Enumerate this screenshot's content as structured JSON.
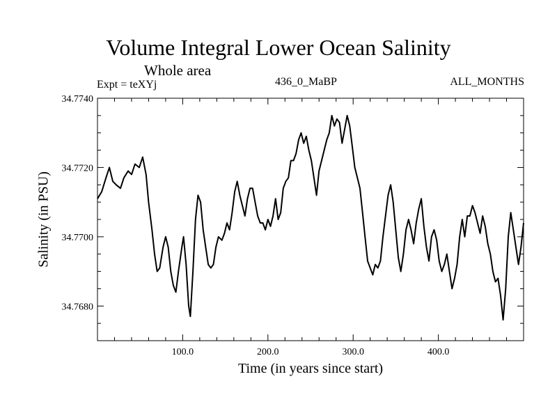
{
  "chart_data": {
    "type": "line",
    "title": "Volume Integral Lower Ocean Salinity",
    "subtitle": "Whole area",
    "left_label": "Expt = teXYj",
    "center_label": "436_0_MaBP",
    "right_label": "ALL_MONTHS",
    "xlabel": "Time (in years since start)",
    "ylabel": "Salinity (in PSU)",
    "xlim": [
      0,
      500
    ],
    "ylim": [
      34.767,
      34.774
    ],
    "xticks": [
      100,
      200,
      300,
      400
    ],
    "xtick_labels": [
      "100.0",
      "200.0",
      "300.0",
      "400.0"
    ],
    "yticks": [
      34.768,
      34.77,
      34.772,
      34.774
    ],
    "ytick_labels": [
      "34.7680",
      "34.7700",
      "34.7720",
      "34.7740"
    ],
    "grid": false,
    "series": [
      {
        "points": [
          [
            0,
            34.7711
          ],
          [
            5,
            34.7713
          ],
          [
            10,
            34.7717
          ],
          [
            14,
            34.772
          ],
          [
            18,
            34.7716
          ],
          [
            22,
            34.7715
          ],
          [
            27,
            34.7714
          ],
          [
            31,
            34.7717
          ],
          [
            36,
            34.7719
          ],
          [
            40,
            34.7718
          ],
          [
            44,
            34.7721
          ],
          [
            49,
            34.772
          ],
          [
            53,
            34.7723
          ],
          [
            57,
            34.7718
          ],
          [
            60,
            34.771
          ],
          [
            64,
            34.7702
          ],
          [
            67,
            34.7695
          ],
          [
            70,
            34.769
          ],
          [
            73,
            34.7691
          ],
          [
            77,
            34.7697
          ],
          [
            80,
            34.77
          ],
          [
            83,
            34.7697
          ],
          [
            86,
            34.769
          ],
          [
            89,
            34.7686
          ],
          [
            92,
            34.7684
          ],
          [
            95,
            34.769
          ],
          [
            99,
            34.7697
          ],
          [
            101,
            34.77
          ],
          [
            104,
            34.7692
          ],
          [
            107,
            34.768
          ],
          [
            109,
            34.7677
          ],
          [
            112,
            34.769
          ],
          [
            115,
            34.7705
          ],
          [
            118,
            34.7712
          ],
          [
            121,
            34.771
          ],
          [
            124,
            34.7702
          ],
          [
            127,
            34.7697
          ],
          [
            130,
            34.7692
          ],
          [
            133,
            34.7691
          ],
          [
            136,
            34.7692
          ],
          [
            139,
            34.7697
          ],
          [
            142,
            34.77
          ],
          [
            146,
            34.7699
          ],
          [
            149,
            34.7701
          ],
          [
            152,
            34.7704
          ],
          [
            155,
            34.7702
          ],
          [
            158,
            34.7707
          ],
          [
            161,
            34.7713
          ],
          [
            164,
            34.7716
          ],
          [
            167,
            34.7712
          ],
          [
            170,
            34.7709
          ],
          [
            173,
            34.7706
          ],
          [
            176,
            34.7711
          ],
          [
            179,
            34.7714
          ],
          [
            182,
            34.7714
          ],
          [
            185,
            34.771
          ],
          [
            188,
            34.7706
          ],
          [
            191,
            34.7704
          ],
          [
            194,
            34.7704
          ],
          [
            197,
            34.7702
          ],
          [
            200,
            34.7705
          ],
          [
            203,
            34.7703
          ],
          [
            206,
            34.7706
          ],
          [
            209,
            34.7711
          ],
          [
            212,
            34.7705
          ],
          [
            215,
            34.7707
          ],
          [
            218,
            34.7714
          ],
          [
            221,
            34.7716
          ],
          [
            224,
            34.7717
          ],
          [
            227,
            34.7722
          ],
          [
            230,
            34.7722
          ],
          [
            233,
            34.7724
          ],
          [
            236,
            34.7728
          ],
          [
            239,
            34.773
          ],
          [
            242,
            34.7727
          ],
          [
            245,
            34.7729
          ],
          [
            248,
            34.7725
          ],
          [
            251,
            34.7722
          ],
          [
            254,
            34.7717
          ],
          [
            257,
            34.7712
          ],
          [
            260,
            34.7719
          ],
          [
            263,
            34.7722
          ],
          [
            266,
            34.7725
          ],
          [
            269,
            34.7728
          ],
          [
            272,
            34.773
          ],
          [
            275,
            34.7735
          ],
          [
            278,
            34.7732
          ],
          [
            281,
            34.7734
          ],
          [
            284,
            34.7733
          ],
          [
            287,
            34.7727
          ],
          [
            290,
            34.7731
          ],
          [
            293,
            34.7735
          ],
          [
            296,
            34.7732
          ],
          [
            299,
            34.7726
          ],
          [
            302,
            34.772
          ],
          [
            305,
            34.7717
          ],
          [
            308,
            34.7714
          ],
          [
            311,
            34.7707
          ],
          [
            314,
            34.77
          ],
          [
            317,
            34.7693
          ],
          [
            320,
            34.7691
          ],
          [
            323,
            34.7689
          ],
          [
            326,
            34.7692
          ],
          [
            329,
            34.7691
          ],
          [
            332,
            34.7693
          ],
          [
            335,
            34.77
          ],
          [
            338,
            34.7706
          ],
          [
            341,
            34.7712
          ],
          [
            344,
            34.7715
          ],
          [
            347,
            34.771
          ],
          [
            350,
            34.7702
          ],
          [
            353,
            34.7694
          ],
          [
            356,
            34.769
          ],
          [
            359,
            34.7695
          ],
          [
            362,
            34.7702
          ],
          [
            365,
            34.7705
          ],
          [
            368,
            34.7702
          ],
          [
            371,
            34.7698
          ],
          [
            374,
            34.7704
          ],
          [
            377,
            34.7708
          ],
          [
            380,
            34.7711
          ],
          [
            383,
            34.7703
          ],
          [
            386,
            34.7697
          ],
          [
            389,
            34.7693
          ],
          [
            392,
            34.77
          ],
          [
            395,
            34.7702
          ],
          [
            398,
            34.7699
          ],
          [
            401,
            34.7693
          ],
          [
            404,
            34.769
          ],
          [
            407,
            34.7692
          ],
          [
            410,
            34.7695
          ],
          [
            413,
            34.769
          ],
          [
            416,
            34.7685
          ],
          [
            419,
            34.7688
          ],
          [
            422,
            34.7692
          ],
          [
            425,
            34.77
          ],
          [
            428,
            34.7705
          ],
          [
            431,
            34.77
          ],
          [
            434,
            34.7706
          ],
          [
            437,
            34.7706
          ],
          [
            440,
            34.7709
          ],
          [
            443,
            34.7707
          ],
          [
            446,
            34.7704
          ],
          [
            449,
            34.7701
          ],
          [
            452,
            34.7706
          ],
          [
            455,
            34.7703
          ],
          [
            458,
            34.7698
          ],
          [
            461,
            34.7695
          ],
          [
            464,
            34.769
          ],
          [
            467,
            34.7687
          ],
          [
            470,
            34.7688
          ],
          [
            473,
            34.7683
          ],
          [
            476,
            34.7676
          ],
          [
            479,
            34.7685
          ],
          [
            482,
            34.77
          ],
          [
            485,
            34.7707
          ],
          [
            488,
            34.7702
          ],
          [
            491,
            34.7697
          ],
          [
            494,
            34.7692
          ],
          [
            497,
            34.7697
          ],
          [
            500,
            34.7704
          ]
        ]
      }
    ]
  }
}
